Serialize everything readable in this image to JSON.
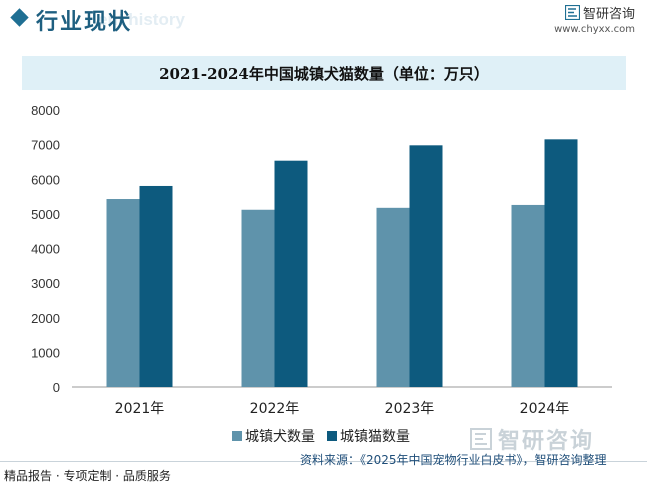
{
  "header": {
    "title": "行业现状",
    "ghost_text": "ent history"
  },
  "brand": {
    "name": "智研咨询",
    "url": "www.chyxx.com",
    "logo_icon": "zhiyan-logo-icon",
    "bottom_name": "智研咨询"
  },
  "colors": {
    "dog": "#5f93ab",
    "cat": "#0d5a7e",
    "accent": "#1f6f93",
    "title_bg": "#dff0f7"
  },
  "chart_data": {
    "type": "bar",
    "title": "2021-2024年中国城镇犬猫数量（单位：万只）",
    "categories": [
      "2021年",
      "2022年",
      "2023年",
      "2024年"
    ],
    "series": [
      {
        "name": "城镇犬数量",
        "values": [
          5429,
          5119,
          5175,
          5258
        ]
      },
      {
        "name": "城镇猫数量",
        "values": [
          5806,
          6536,
          6980,
          7153
        ]
      }
    ],
    "ylim": [
      0,
      8000
    ],
    "yticks": [
      "0",
      "1000",
      "2000",
      "3000",
      "4000",
      "5000",
      "6000",
      "7000",
      "8000"
    ],
    "grid": false,
    "legend": "bottom"
  },
  "footer": {
    "left": "精品报告 · 专项定制 · 品质服务",
    "source": "资料来源：《2025年中国宠物行业白皮书》，智研咨询整理"
  }
}
